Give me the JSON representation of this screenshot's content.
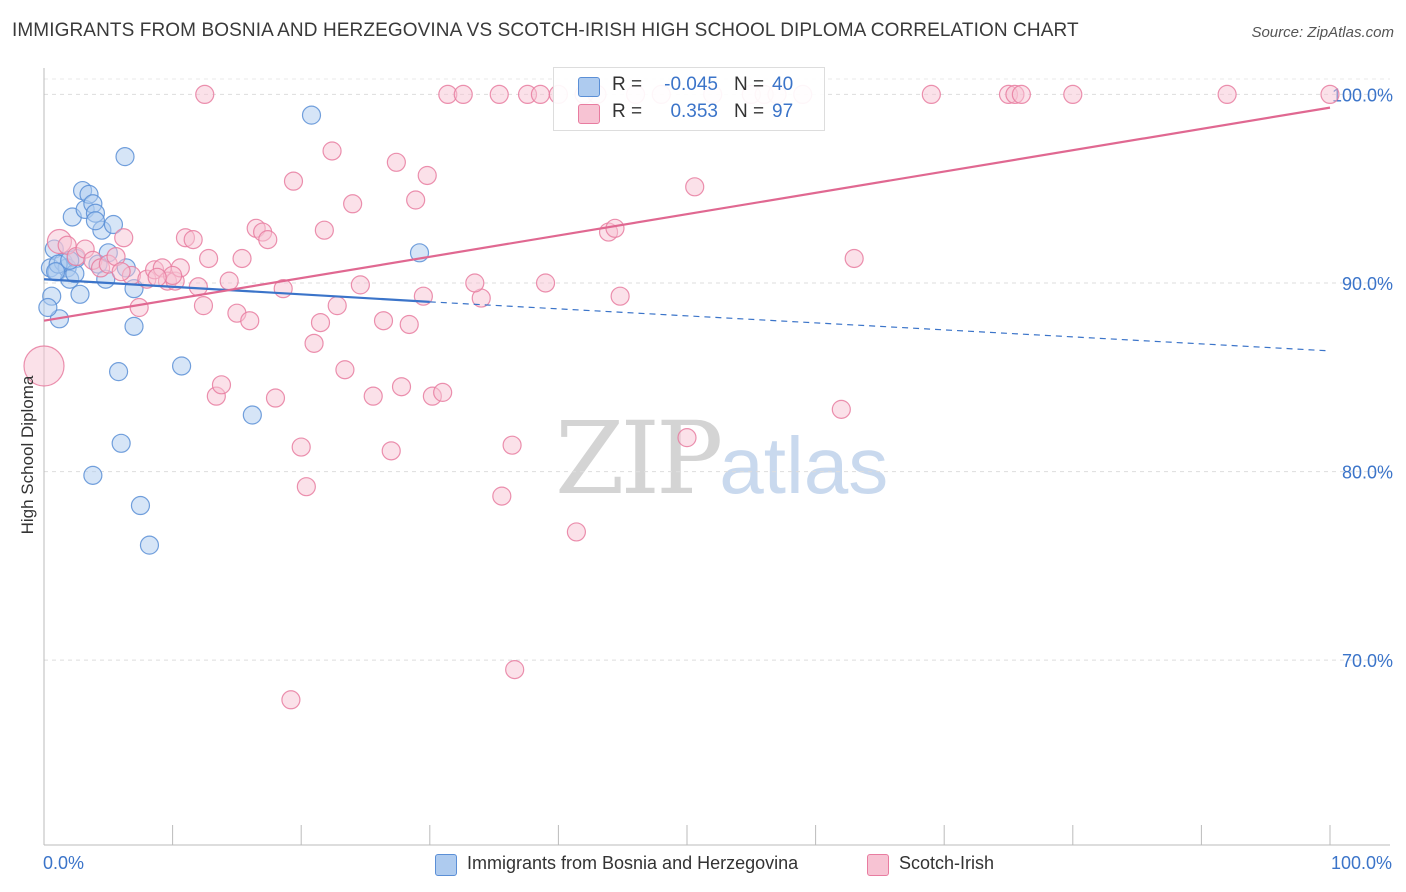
{
  "title": "IMMIGRANTS FROM BOSNIA AND HERZEGOVINA VS SCOTCH-IRISH HIGH SCHOOL DIPLOMA CORRELATION CHART",
  "source": "Source: ZipAtlas.com",
  "watermark": {
    "part1": "ZIP",
    "part2": "atlas"
  },
  "colors": {
    "blue": "#5b8fd6",
    "blue_fill": "#aecbef",
    "pink": "#e87ca0",
    "pink_fill": "#f7c3d3",
    "label_blue": "#3b74c9"
  },
  "legend_top": {
    "rows": [
      {
        "r_label": "R =",
        "r_value": "-0.045",
        "n_label": "N =",
        "n_value": "40",
        "color": "blue"
      },
      {
        "r_label": "R =",
        "r_value": "0.353",
        "n_label": "N =",
        "n_value": "97",
        "color": "pink"
      }
    ]
  },
  "legend_bottom": {
    "items": [
      {
        "label": "Immigrants from Bosnia and Herzegovina",
        "color": "blue"
      },
      {
        "label": "Scotch-Irish",
        "color": "pink"
      }
    ]
  },
  "chart_data": {
    "type": "scatter",
    "title": "IMMIGRANTS FROM BOSNIA AND HERZEGOVINA VS SCOTCH-IRISH HIGH SCHOOL DIPLOMA CORRELATION CHART",
    "xlabel": "",
    "ylabel": "High School Diploma",
    "xlim": [
      0,
      100
    ],
    "ylim": [
      60.2,
      101.4
    ],
    "x_tick_labels": [
      "0.0%",
      "100.0%"
    ],
    "y_ticks": [
      70,
      80,
      90,
      100
    ],
    "y_tick_labels": [
      "70.0%",
      "80.0%",
      "90.0%",
      "100.0%"
    ],
    "grid": true,
    "legend_position": "top-center",
    "series": [
      {
        "name": "Immigrants from Bosnia and Herzegovina",
        "color": "#5b8fd6",
        "r": -0.045,
        "n": 40,
        "trend": {
          "x0": 0,
          "y0": 90.2,
          "x1": 30,
          "y1": 89.0,
          "dashed_to_x": 100,
          "dashed_to_y": 86.4
        },
        "points": [
          [
            0.5,
            90.8
          ],
          [
            0.6,
            89.3
          ],
          [
            0.8,
            91.8
          ],
          [
            1.0,
            90.6
          ],
          [
            1.2,
            88.1
          ],
          [
            1.5,
            91.1
          ],
          [
            1.8,
            90.8
          ],
          [
            2.0,
            90.2
          ],
          [
            2.2,
            93.5
          ],
          [
            2.5,
            91.3
          ],
          [
            2.8,
            89.4
          ],
          [
            3.0,
            94.9
          ],
          [
            3.2,
            93.9
          ],
          [
            3.5,
            94.7
          ],
          [
            3.8,
            94.2
          ],
          [
            4.0,
            93.7
          ],
          [
            4.2,
            91.0
          ],
          [
            4.5,
            92.8
          ],
          [
            4.8,
            90.2
          ],
          [
            5.0,
            91.6
          ],
          [
            5.4,
            93.1
          ],
          [
            5.8,
            85.3
          ],
          [
            6.0,
            81.5
          ],
          [
            6.4,
            90.8
          ],
          [
            7.0,
            89.7
          ],
          [
            6.3,
            96.7
          ],
          [
            7.5,
            78.2
          ],
          [
            7.0,
            87.7
          ],
          [
            8.2,
            76.1
          ],
          [
            10.7,
            85.6
          ],
          [
            16.2,
            83.0
          ],
          [
            20.8,
            98.9
          ],
          [
            29.2,
            91.6
          ],
          [
            3.8,
            79.8
          ],
          [
            2.4,
            90.5
          ],
          [
            0.3,
            88.7
          ],
          [
            1.1,
            91.0
          ],
          [
            4.0,
            93.3
          ],
          [
            0.9,
            90.6
          ],
          [
            2.0,
            91.2
          ]
        ]
      },
      {
        "name": "Scotch-Irish",
        "color": "#e87ca0",
        "r": 0.353,
        "n": 97,
        "trend": {
          "x0": 0,
          "y0": 88.0,
          "x1": 100,
          "y1": 99.3
        },
        "points": [
          [
            0.0,
            85.6
          ],
          [
            1.2,
            92.2
          ],
          [
            1.8,
            92.0
          ],
          [
            2.5,
            91.4
          ],
          [
            3.2,
            91.8
          ],
          [
            3.8,
            91.2
          ],
          [
            4.4,
            90.8
          ],
          [
            5.0,
            91.0
          ],
          [
            5.6,
            91.4
          ],
          [
            6.2,
            92.4
          ],
          [
            6.8,
            90.4
          ],
          [
            7.4,
            88.7
          ],
          [
            8.0,
            90.2
          ],
          [
            8.6,
            90.7
          ],
          [
            9.2,
            90.8
          ],
          [
            9.6,
            90.1
          ],
          [
            10.2,
            90.1
          ],
          [
            10.6,
            90.8
          ],
          [
            11.0,
            92.4
          ],
          [
            11.6,
            92.3
          ],
          [
            12.0,
            89.8
          ],
          [
            12.4,
            88.8
          ],
          [
            12.8,
            91.3
          ],
          [
            13.4,
            84.0
          ],
          [
            13.8,
            84.6
          ],
          [
            14.4,
            90.1
          ],
          [
            15.0,
            88.4
          ],
          [
            15.4,
            91.3
          ],
          [
            16.0,
            88.0
          ],
          [
            16.5,
            92.9
          ],
          [
            17.0,
            92.7
          ],
          [
            17.4,
            92.3
          ],
          [
            18.0,
            83.9
          ],
          [
            18.6,
            89.7
          ],
          [
            19.2,
            67.9
          ],
          [
            19.4,
            95.4
          ],
          [
            20.0,
            81.3
          ],
          [
            20.4,
            79.2
          ],
          [
            21.0,
            86.8
          ],
          [
            21.5,
            87.9
          ],
          [
            21.8,
            92.8
          ],
          [
            22.4,
            97.0
          ],
          [
            22.8,
            88.8
          ],
          [
            23.4,
            85.4
          ],
          [
            24.0,
            94.2
          ],
          [
            24.6,
            89.9
          ],
          [
            25.6,
            84.0
          ],
          [
            26.4,
            88.0
          ],
          [
            27.0,
            81.1
          ],
          [
            27.4,
            96.4
          ],
          [
            27.8,
            84.5
          ],
          [
            28.4,
            87.8
          ],
          [
            28.9,
            94.4
          ],
          [
            29.5,
            89.3
          ],
          [
            29.8,
            95.7
          ],
          [
            30.2,
            84.0
          ],
          [
            31.0,
            84.2
          ],
          [
            31.4,
            100.0
          ],
          [
            32.6,
            100.0
          ],
          [
            34.0,
            89.2
          ],
          [
            33.5,
            90.0
          ],
          [
            35.4,
            100.0
          ],
          [
            35.6,
            78.7
          ],
          [
            36.4,
            81.4
          ],
          [
            36.6,
            69.5
          ],
          [
            37.6,
            100.0
          ],
          [
            38.6,
            100.0
          ],
          [
            39.0,
            90.0
          ],
          [
            40.0,
            100.0
          ],
          [
            41.4,
            76.8
          ],
          [
            42.0,
            100.0
          ],
          [
            43.0,
            100.0
          ],
          [
            43.9,
            92.7
          ],
          [
            44.4,
            92.9
          ],
          [
            44.8,
            89.3
          ],
          [
            46.0,
            100.0
          ],
          [
            48.0,
            100.0
          ],
          [
            50.0,
            81.8
          ],
          [
            50.6,
            95.1
          ],
          [
            52.0,
            100.0
          ],
          [
            55.0,
            100.0
          ],
          [
            56.0,
            100.0
          ],
          [
            57.0,
            100.0
          ],
          [
            59.0,
            100.0
          ],
          [
            62.0,
            83.3
          ],
          [
            63.0,
            91.3
          ],
          [
            69.0,
            100.0
          ],
          [
            75.0,
            100.0
          ],
          [
            75.5,
            100.0
          ],
          [
            76.0,
            100.0
          ],
          [
            80.0,
            100.0
          ],
          [
            92.0,
            100.0
          ],
          [
            100.0,
            100.0
          ],
          [
            12.5,
            100.0
          ],
          [
            10.0,
            90.4
          ],
          [
            6.0,
            90.6
          ],
          [
            8.8,
            90.3
          ]
        ]
      }
    ]
  }
}
